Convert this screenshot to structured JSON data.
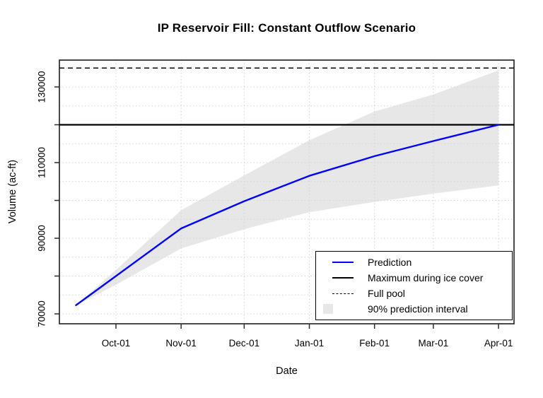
{
  "title": "IP Reservoir Fill: Constant Outflow Scenario",
  "axes": {
    "x_label": "Date",
    "y_label": "Volume (ac-ft)"
  },
  "legend": {
    "items": [
      {
        "label": "Prediction",
        "sample": "blue-line"
      },
      {
        "label": "Maximum during ice cover",
        "sample": "black-line"
      },
      {
        "label": "Full pool",
        "sample": "dashed-line"
      },
      {
        "label": "90% prediction interval",
        "sample": "gray-fill"
      }
    ]
  },
  "colors": {
    "prediction": "#0000ff",
    "band": "#e7e7e7",
    "grid": "#d5d5d5",
    "axis": "#000000",
    "reference": "#000000",
    "background": "#ffffff"
  },
  "chart_data": {
    "type": "line",
    "title": "IP Reservoir Fill: Constant Outflow Scenario",
    "xlabel": "Date",
    "ylabel": "Volume (ac-ft)",
    "x_tick_labels": [
      "Oct-01",
      "Nov-01",
      "Dec-01",
      "Jan-01",
      "Feb-01",
      "Mar-01",
      "Apr-01"
    ],
    "x_tick_days": [
      0,
      31,
      61,
      92,
      123,
      151,
      182
    ],
    "y_ticks": [
      70000,
      80000,
      90000,
      100000,
      110000,
      120000,
      130000
    ],
    "y_tick_labels": [
      "70000",
      "",
      "90000",
      "",
      "110000",
      "",
      "130000"
    ],
    "ylim": [
      67400,
      137200
    ],
    "grid": "dotted-every-5000-and-monthly",
    "legend_position": "bottom-right",
    "band_name": "90% prediction interval",
    "series_names": [
      "Prediction",
      "90% interval lower",
      "90% interval upper"
    ],
    "points": [
      {
        "date": "Sep-12",
        "day": -19,
        "prediction": 72300,
        "lower": 72300,
        "upper": 72300
      },
      {
        "date": "Oct-01",
        "day": 0,
        "prediction": 80000,
        "lower": 77700,
        "upper": 81600
      },
      {
        "date": "Nov-01",
        "day": 31,
        "prediction": 92600,
        "lower": 87300,
        "upper": 97400
      },
      {
        "date": "Dec-01",
        "day": 61,
        "prediction": 99800,
        "lower": 92400,
        "upper": 106600
      },
      {
        "date": "Jan-01",
        "day": 92,
        "prediction": 106500,
        "lower": 96900,
        "upper": 115900
      },
      {
        "date": "Feb-01",
        "day": 123,
        "prediction": 111700,
        "lower": 99600,
        "upper": 123500
      },
      {
        "date": "Mar-01",
        "day": 151,
        "prediction": 115700,
        "lower": 101800,
        "upper": 128000
      },
      {
        "date": "Apr-01",
        "day": 182,
        "prediction": 120000,
        "lower": 104000,
        "upper": 134400
      }
    ],
    "reference_lines": [
      {
        "label": "Maximum during ice cover",
        "value": 120000,
        "style": "solid"
      },
      {
        "label": "Full pool",
        "value": 135000,
        "style": "dashed"
      }
    ]
  }
}
